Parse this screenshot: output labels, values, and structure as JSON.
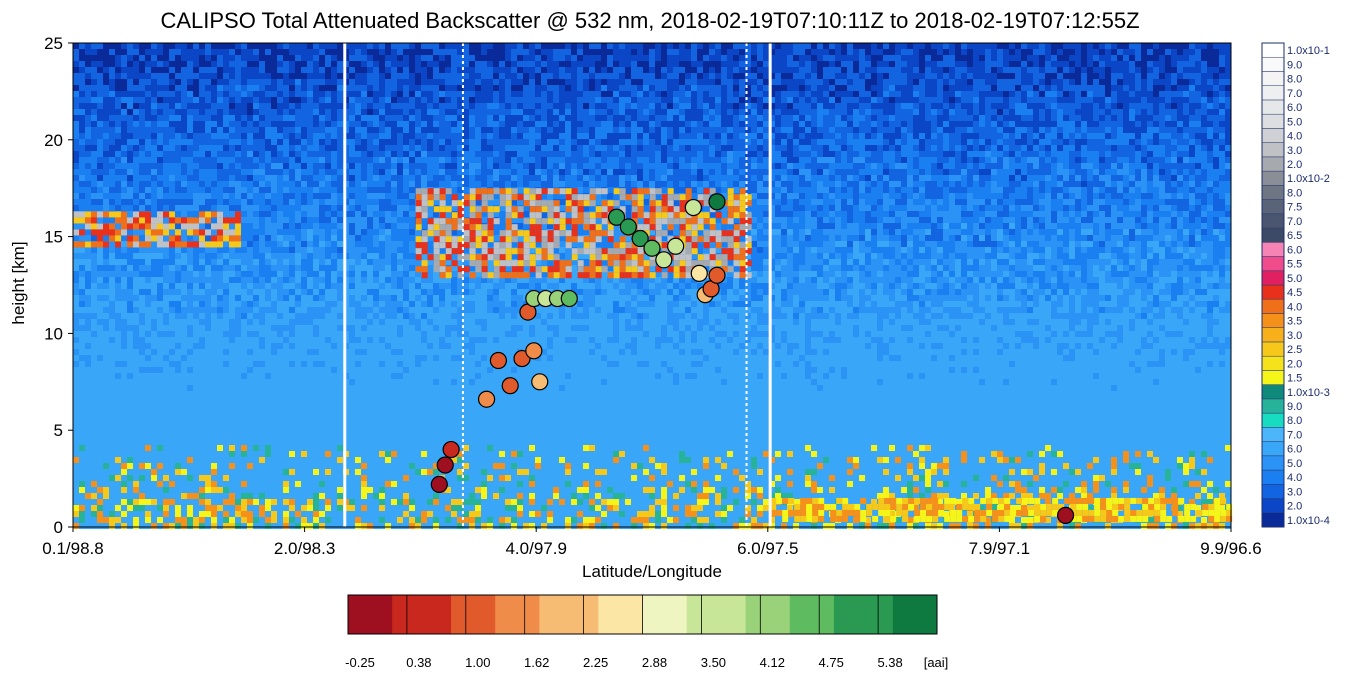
{
  "chart_data": {
    "type": "heatmap",
    "title": "CALIPSO Total Attenuated Backscatter @ 532 nm, 2018-02-19T07:10:11Z to 2018-02-19T07:12:55Z",
    "xlabel": "Latitude/Longitude",
    "ylabel": "height [km]",
    "ylim": [
      0,
      25
    ],
    "y_ticks": [
      0,
      5,
      10,
      15,
      20,
      25
    ],
    "x_ticks": [
      "0.1/98.8",
      "2.0/98.3",
      "4.0/97.9",
      "6.0/97.5",
      "7.9/97.1",
      "9.9/96.6"
    ],
    "x_lat_range": [
      0.1,
      9.9
    ],
    "granule_boundaries_lat": [
      2.4,
      6.0
    ],
    "dotted_lines_lat": [
      3.4,
      5.8
    ],
    "backscatter_colorbar": {
      "labels": [
        "1.0x10-4",
        "2.0",
        "3.0",
        "4.0",
        "5.0",
        "6.0",
        "7.0",
        "8.0",
        "9.0",
        "1.0x10-3",
        "1.5",
        "2.0",
        "2.5",
        "3.0",
        "3.5",
        "4.0",
        "4.5",
        "5.0",
        "5.5",
        "6.0",
        "6.5",
        "7.0",
        "7.5",
        "8.0",
        "1.0x10-2",
        "2.0",
        "3.0",
        "4.0",
        "5.0",
        "6.0",
        "7.0",
        "8.0",
        "9.0",
        "1.0x10-1"
      ],
      "colors": [
        "#0a2a9a",
        "#0b46c6",
        "#1264e0",
        "#1a7ff0",
        "#2b93f5",
        "#3aa6f8",
        "#4db6fa",
        "#17dcc0",
        "#26b39a",
        "#0f8a7a",
        "#f5f51a",
        "#f5e21a",
        "#f5c81a",
        "#f7b01a",
        "#f5901a",
        "#f0701a",
        "#e8301a",
        "#e02060",
        "#f04c8c",
        "#f584b4",
        "#3d4a66",
        "#4a5670",
        "#5a6479",
        "#6e7684",
        "#8a8e96",
        "#a6a9ae",
        "#bfc1c4",
        "#cfd1d4",
        "#dcdee0",
        "#e6e7e9",
        "#eeeff0",
        "#f4f4f5",
        "#f9f9fa",
        "#ffffff"
      ]
    },
    "aai_colorbar": {
      "unit": "[aai]",
      "tick_labels": [
        "-0.25",
        "0.38",
        "1.00",
        "1.62",
        "2.25",
        "2.88",
        "3.50",
        "4.12",
        "4.75",
        "5.38"
      ],
      "range": [
        -0.25,
        6.0
      ]
    },
    "layers": [
      {
        "name": "",
        "lat": [
          0.1,
          1.5
        ],
        "height": [
          14.5,
          16.3
        ],
        "level": "high"
      },
      {
        "name": "",
        "lat": [
          3.0,
          5.8
        ],
        "height": [
          13.0,
          17.5
        ],
        "level": "very-high"
      },
      {
        "name": "",
        "lat": [
          6.0,
          9.9
        ],
        "height": [
          0.3,
          1.5
        ],
        "level": "medium"
      }
    ],
    "aai_points": [
      {
        "lat": 3.6,
        "height": 6.6,
        "aai": 1.6
      },
      {
        "lat": 3.7,
        "height": 8.6,
        "aai": 1.0
      },
      {
        "lat": 3.8,
        "height": 7.3,
        "aai": 1.0
      },
      {
        "lat": 3.9,
        "height": 8.7,
        "aai": 1.3
      },
      {
        "lat": 3.95,
        "height": 11.1,
        "aai": 1.0
      },
      {
        "lat": 4.0,
        "height": 9.1,
        "aai": 1.5
      },
      {
        "lat": 4.05,
        "height": 7.5,
        "aai": 2.0
      },
      {
        "lat": 3.2,
        "height": 2.2,
        "aai": -0.2
      },
      {
        "lat": 3.25,
        "height": 3.2,
        "aai": 0.1
      },
      {
        "lat": 3.3,
        "height": 4.0,
        "aai": 0.3
      },
      {
        "lat": 4.0,
        "height": 11.8,
        "aai": 4.0
      },
      {
        "lat": 4.1,
        "height": 11.8,
        "aai": 3.8
      },
      {
        "lat": 4.2,
        "height": 11.8,
        "aai": 4.4
      },
      {
        "lat": 4.3,
        "height": 11.8,
        "aai": 4.8
      },
      {
        "lat": 4.7,
        "height": 16.0,
        "aai": 5.1
      },
      {
        "lat": 4.8,
        "height": 15.5,
        "aai": 5.4
      },
      {
        "lat": 4.9,
        "height": 14.9,
        "aai": 5.0
      },
      {
        "lat": 5.0,
        "height": 14.4,
        "aai": 4.6
      },
      {
        "lat": 5.1,
        "height": 13.8,
        "aai": 3.9
      },
      {
        "lat": 5.2,
        "height": 14.5,
        "aai": 3.8
      },
      {
        "lat": 5.35,
        "height": 16.5,
        "aai": 3.4
      },
      {
        "lat": 5.55,
        "height": 16.8,
        "aai": 6.0
      },
      {
        "lat": 5.4,
        "height": 13.1,
        "aai": 2.8
      },
      {
        "lat": 5.45,
        "height": 12.0,
        "aai": 1.9
      },
      {
        "lat": 5.5,
        "height": 12.3,
        "aai": 1.0
      },
      {
        "lat": 5.55,
        "height": 13.0,
        "aai": 1.0
      },
      {
        "lat": 8.5,
        "height": 0.6,
        "aai": -0.1
      }
    ]
  }
}
